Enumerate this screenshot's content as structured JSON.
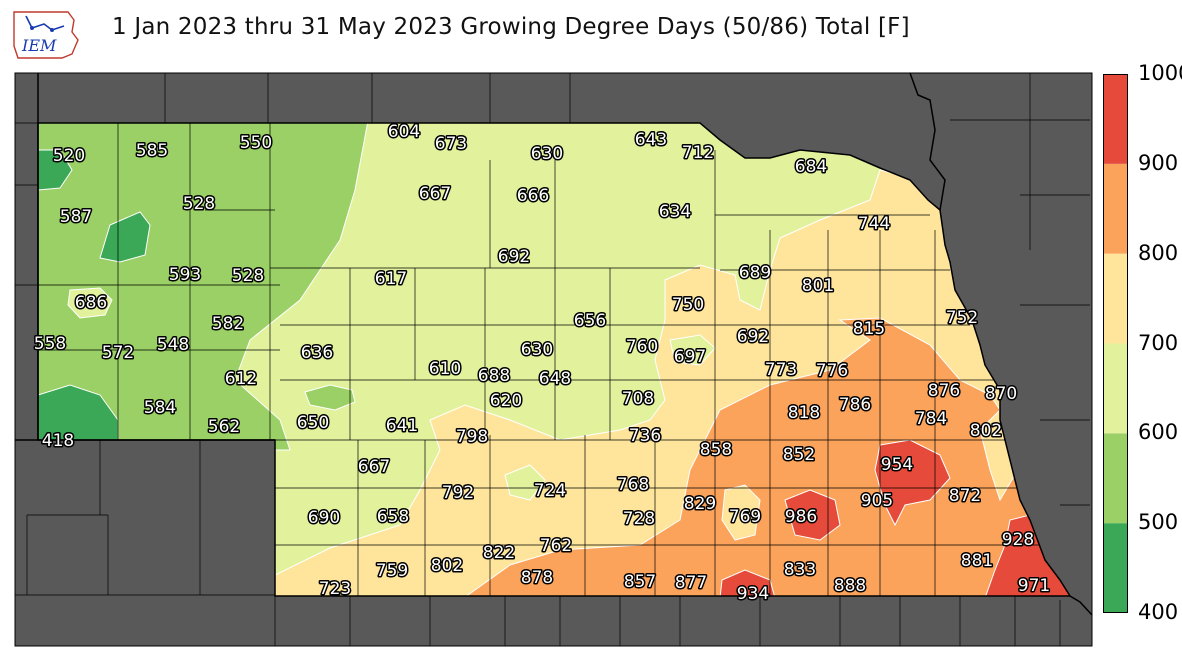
{
  "header": {
    "title": "1 Jan 2023 thru 31 May 2023 Growing Degree Days (50/86) Total [F]",
    "logo_text": "IEM"
  },
  "colors": {
    "background_region": "#595959",
    "county_line": "#000000",
    "contour_line": "#ffffff",
    "bin_400_500": "#3aa856",
    "bin_500_600": "#9ad065",
    "bin_600_700": "#e2f29c",
    "bin_700_800": "#fee59b",
    "bin_800_900": "#fba35b",
    "bin_900_1000": "#e54a3a"
  },
  "colorbar": {
    "ticks": [
      "400",
      "500",
      "600",
      "700",
      "800",
      "900",
      "1000"
    ],
    "bins": [
      {
        "min": 400,
        "max": 500,
        "color": "#3aa856"
      },
      {
        "min": 500,
        "max": 600,
        "color": "#9ad065"
      },
      {
        "min": 600,
        "max": 700,
        "color": "#e2f29c"
      },
      {
        "min": 700,
        "max": 800,
        "color": "#fee59b"
      },
      {
        "min": 800,
        "max": 900,
        "color": "#fba35b"
      },
      {
        "min": 900,
        "max": 1000,
        "color": "#e54a3a"
      }
    ]
  },
  "station_values": [
    "520",
    "585",
    "550",
    "604",
    "673",
    "630",
    "643",
    "712",
    "684",
    "587",
    "528",
    "667",
    "666",
    "634",
    "744",
    "692",
    "593",
    "528",
    "617",
    "689",
    "801",
    "686",
    "750",
    "582",
    "656",
    "815",
    "752",
    "558",
    "572",
    "548",
    "636",
    "760",
    "697",
    "692",
    "630",
    "610",
    "688",
    "648",
    "773",
    "776",
    "612",
    "876",
    "870",
    "584",
    "620",
    "708",
    "818",
    "786",
    "784",
    "562",
    "650",
    "641",
    "798",
    "736",
    "802",
    "418",
    "858",
    "852",
    "954",
    "667",
    "792",
    "724",
    "768",
    "829",
    "769",
    "986",
    "905",
    "872",
    "690",
    "658",
    "728",
    "822",
    "762",
    "928",
    "881",
    "759",
    "802",
    "878",
    "857",
    "877",
    "833",
    "971",
    "723",
    "934",
    "888"
  ]
}
